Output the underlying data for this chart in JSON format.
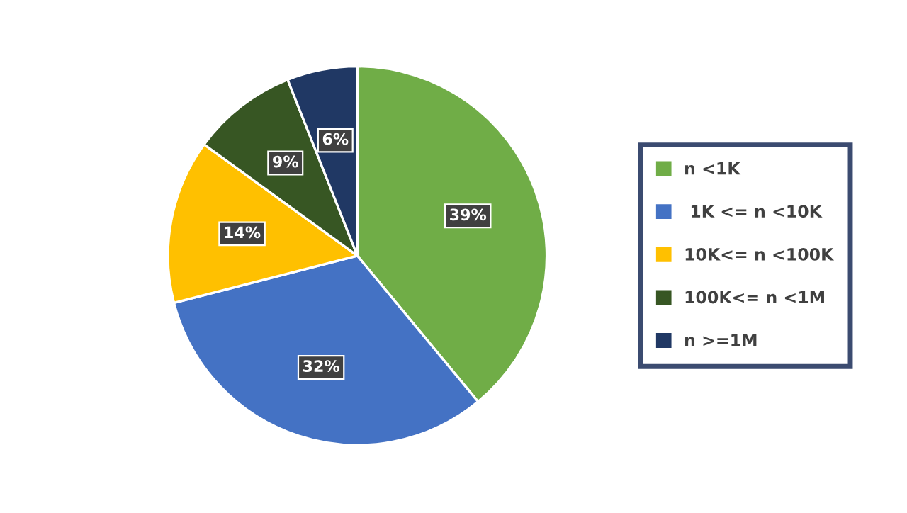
{
  "chart_data": {
    "type": "pie",
    "categories": [
      "n <1K",
      " 1K <= n <10K",
      "10K<= n <100K",
      "100K<= n <1M",
      "n >=1M"
    ],
    "values": [
      39,
      32,
      14,
      9,
      6
    ],
    "colors": [
      "#70ad47",
      "#4472c4",
      "#ffc000",
      "#375623",
      "#203864"
    ],
    "value_labels": [
      "39%",
      "32%",
      "14%",
      "9%",
      "6%"
    ],
    "legend": "right"
  }
}
